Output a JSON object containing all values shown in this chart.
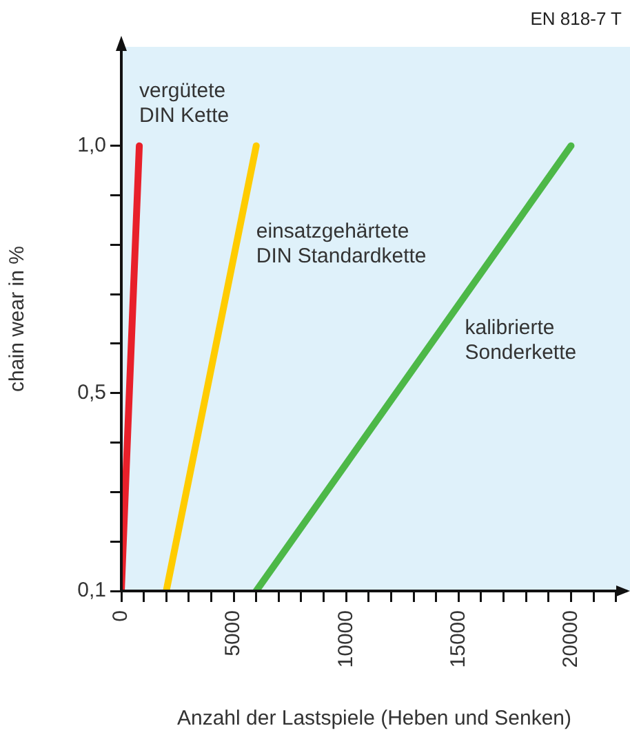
{
  "chart_data": {
    "type": "line",
    "xlabel": "Anzahl der Lastspiele (Heben und Senken)",
    "ylabel": "chain wear in %",
    "annotations": [
      "EN 818-7 T"
    ],
    "xlim": [
      0,
      22500
    ],
    "xticks": [
      0,
      {
        "value": 1000,
        "label": null
      },
      {
        "value": 2000,
        "label": null
      },
      {
        "value": 3000,
        "label": null
      },
      {
        "value": 4000,
        "label": null
      },
      5000,
      {
        "value": 6000,
        "label": null
      },
      {
        "value": 7000,
        "label": null
      },
      {
        "value": 8000,
        "label": null
      },
      {
        "value": 9000,
        "label": null
      },
      10000,
      {
        "value": 11000,
        "label": null
      },
      {
        "value": 12000,
        "label": null
      },
      {
        "value": 13000,
        "label": null
      },
      {
        "value": 14000,
        "label": null
      },
      15000,
      {
        "value": 16000,
        "label": null
      },
      {
        "value": 17000,
        "label": null
      },
      {
        "value": 18000,
        "label": null
      },
      {
        "value": 19000,
        "label": null
      },
      20000,
      {
        "value": 21000,
        "label": null
      },
      {
        "value": 22000,
        "label": null
      }
    ],
    "ylim": [
      0.1,
      1.2
    ],
    "yticks": [
      {
        "value": 0.1,
        "label": "0,1"
      },
      {
        "value": 0.2,
        "label": null
      },
      {
        "value": 0.3,
        "label": null
      },
      {
        "value": 0.4,
        "label": null
      },
      {
        "value": 0.5,
        "label": "0,5"
      },
      {
        "value": 0.6,
        "label": null
      },
      {
        "value": 0.7,
        "label": null
      },
      {
        "value": 0.8,
        "label": null
      },
      {
        "value": 0.9,
        "label": null
      },
      {
        "value": 1.0,
        "label": "1,0"
      }
    ],
    "grid": false,
    "legend": false,
    "marker": "none",
    "line_style": "solid",
    "series": [
      {
        "name": "vergütete DIN Kette",
        "color": "#e8202a",
        "x": [
          0,
          800
        ],
        "values": [
          0.1,
          1.0
        ]
      },
      {
        "name": "einsatzgehärtete DIN Standardkette",
        "color": "#ffcc00",
        "x": [
          2000,
          6000
        ],
        "values": [
          0.1,
          1.0
        ]
      },
      {
        "name": "kalibrierte Sonderkette",
        "color": "#4db848",
        "x": [
          6000,
          20000
        ],
        "values": [
          0.1,
          1.0
        ]
      }
    ]
  }
}
